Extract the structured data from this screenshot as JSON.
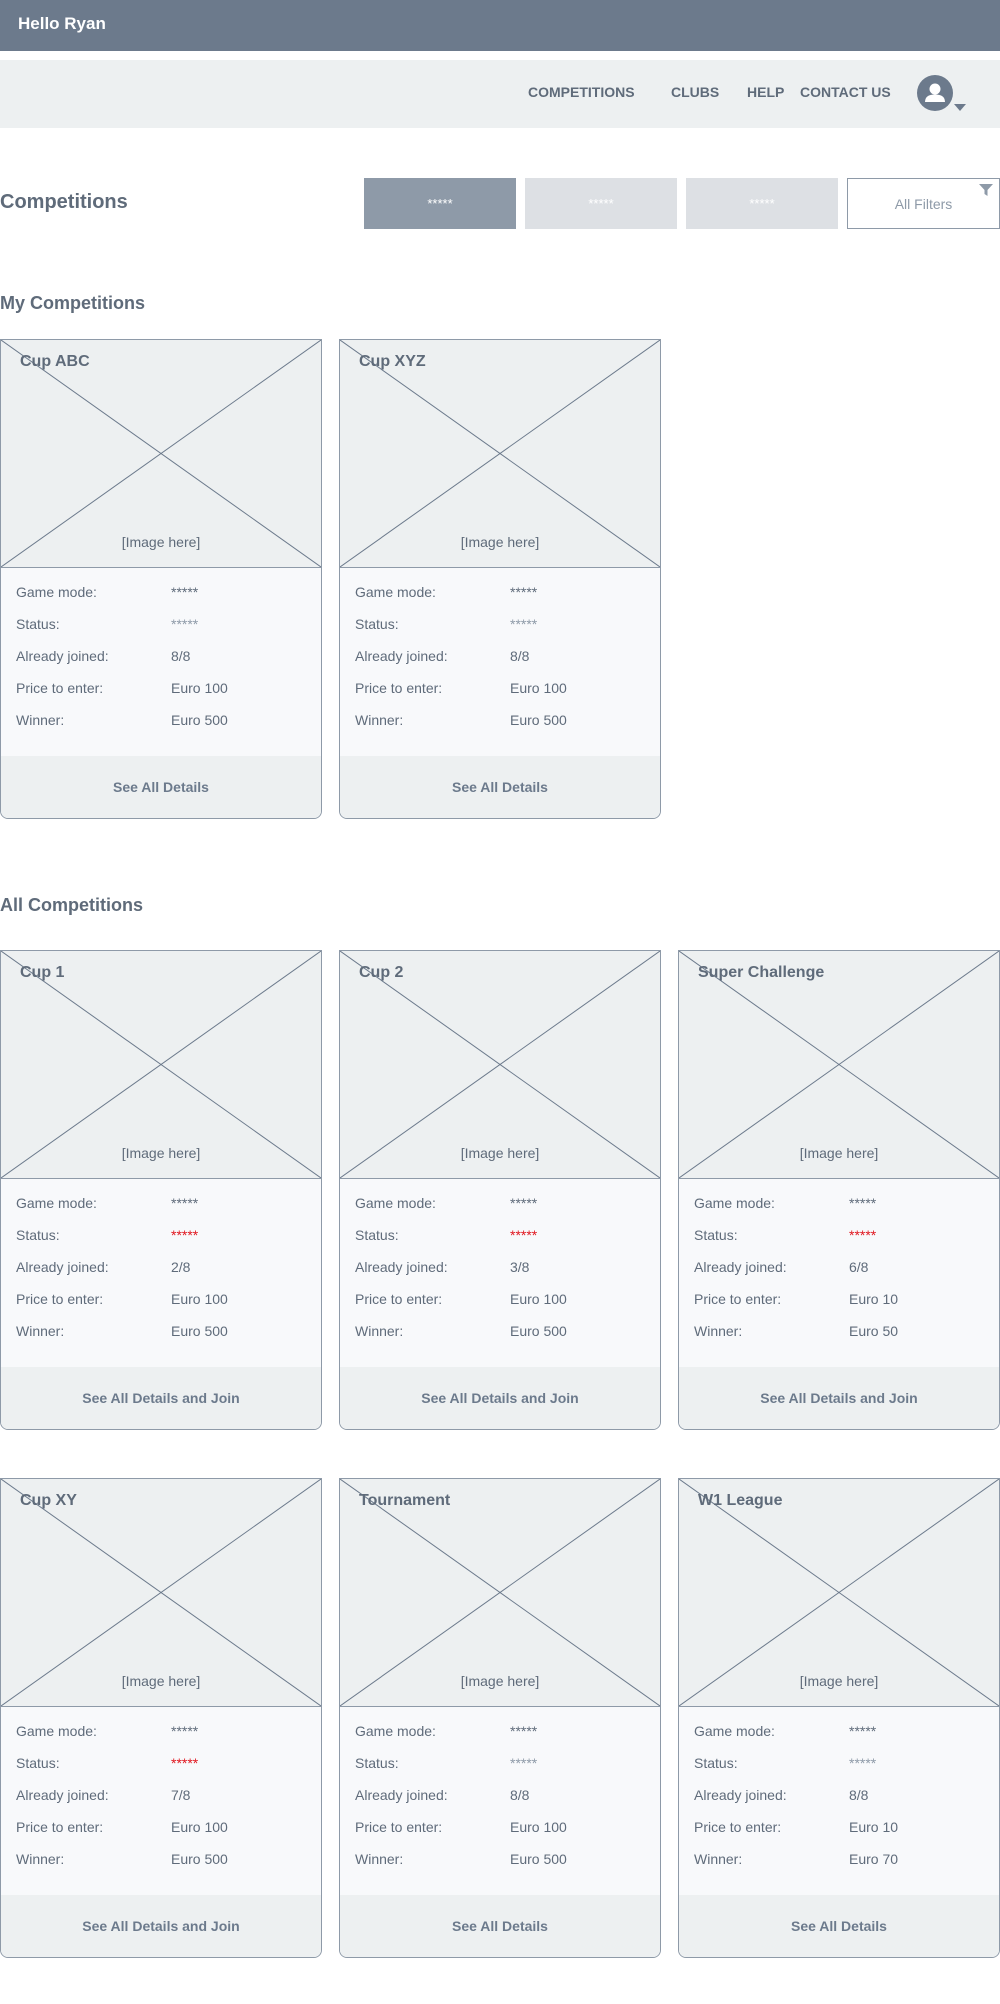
{
  "header": {
    "greeting": "Hello Ryan"
  },
  "nav": {
    "items": [
      {
        "label": "COMPETITIONS"
      },
      {
        "label": "CLUBS"
      },
      {
        "label": "HELP"
      },
      {
        "label": "CONTACT US"
      }
    ]
  },
  "page": {
    "title": "Competitions"
  },
  "filters": {
    "options": [
      "*****",
      "*****",
      "*****"
    ],
    "all_label": "All Filters"
  },
  "labels": {
    "game_mode": "Game mode:",
    "status": "Status:",
    "joined": "Already joined:",
    "price": "Price to enter:",
    "winner": "Winner:",
    "image_placeholder": "[Image here]"
  },
  "my_competitions": {
    "title": "My Competitions",
    "cards": [
      {
        "name": "Cup ABC",
        "game_mode": "*****",
        "status": "*****",
        "status_color": "#8e9aa8",
        "joined": "8/8",
        "price": "Euro 100",
        "winner": "Euro 500",
        "action": "See All Details"
      },
      {
        "name": "Cup XYZ",
        "game_mode": "*****",
        "status": "*****",
        "status_color": "#8e9aa8",
        "joined": "8/8",
        "price": "Euro 100",
        "winner": "Euro 500",
        "action": "See All Details"
      }
    ]
  },
  "all_competitions": {
    "title": "All Competitions",
    "cards": [
      {
        "name": "Cup 1",
        "game_mode": "*****",
        "status": "*****",
        "status_color": "#e0161e",
        "joined": "2/8",
        "price": "Euro 100",
        "winner": "Euro 500",
        "action": "See All Details and Join"
      },
      {
        "name": "Cup 2",
        "game_mode": "*****",
        "status": "*****",
        "status_color": "#e0161e",
        "joined": "3/8",
        "price": "Euro 100",
        "winner": "Euro 500",
        "action": "See All Details and Join"
      },
      {
        "name": "Super Challenge",
        "game_mode": "*****",
        "status": "*****",
        "status_color": "#e0161e",
        "joined": "6/8",
        "price": "Euro 10",
        "winner": "Euro 50",
        "action": "See All Details and Join"
      },
      {
        "name": "Cup XY",
        "game_mode": "*****",
        "status": "*****",
        "status_color": "#e0161e",
        "joined": "7/8",
        "price": "Euro 100",
        "winner": "Euro 500",
        "action": "See All Details and Join"
      },
      {
        "name": "Tournament",
        "game_mode": "*****",
        "status": "*****",
        "status_color": "#8e9aa8",
        "joined": "8/8",
        "price": "Euro 100",
        "winner": "Euro 500",
        "action": "See All Details"
      },
      {
        "name": "W1 League",
        "game_mode": "*****",
        "status": "*****",
        "status_color": "#8e9aa8",
        "joined": "8/8",
        "price": "Euro 10",
        "winner": "Euro 70",
        "action": "See All Details"
      }
    ]
  },
  "colors": {
    "header_bg": "#6c7a8c",
    "nav_bg": "#edf0f1",
    "accent_filter": "#8e9aa8",
    "status_alert": "#e0161e"
  },
  "icons": {
    "avatar": "user-avatar-icon",
    "caret": "caret-down-icon",
    "filter": "funnel-icon",
    "image_placeholder": "image-placeholder-x-icon"
  }
}
